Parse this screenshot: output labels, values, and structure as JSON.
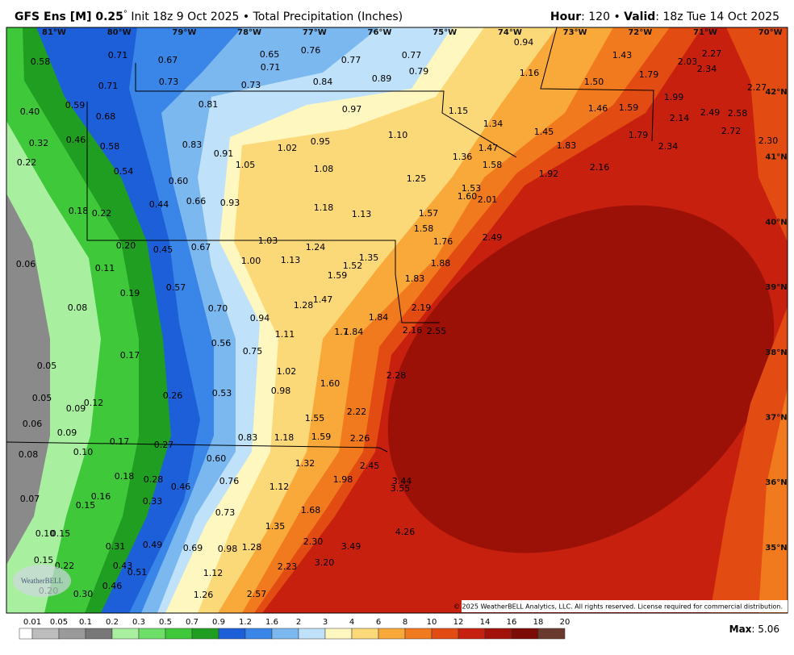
{
  "header": {
    "model": "GFS Ens [M] 0.25",
    "degree": "°",
    "description": " Init 18z 9 Oct 2025 • Total Precipitation (Inches)",
    "hour_key": "Hour",
    "hour_value": ": 120 • ",
    "valid_key": "Valid",
    "valid_value": ": 18z Tue 14 Oct 2025"
  },
  "longitudes": [
    "81°W",
    "80°W",
    "79°W",
    "78°W",
    "77°W",
    "76°W",
    "75°W",
    "74°W",
    "73°W",
    "72°W",
    "71°W",
    "70°W"
  ],
  "latitudes": [
    "42°N",
    "41°N",
    "40°N",
    "39°N",
    "38°N",
    "37°N",
    "36°N",
    "35°N"
  ],
  "point_labels": [
    "0.58",
    "0.71",
    "0.67",
    "0.65",
    "0.76",
    "0.77",
    "0.77",
    "0.94",
    "0.71",
    "0.73",
    "0.73",
    "0.84",
    "0.89",
    "0.79",
    "1.16",
    "1.43",
    "2.03",
    "2.27",
    "2.34",
    "0.71",
    "1.50",
    "1.79",
    "2.27",
    "0.40",
    "0.59",
    "0.81",
    "0.97",
    "1.15",
    "1.46",
    "1.59",
    "1.99",
    "2.49",
    "2.58",
    "2.14",
    "0.68",
    "1.34",
    "1.45",
    "2.72",
    "1.79",
    "0.32",
    "0.46",
    "0.58",
    "0.83",
    "0.91",
    "1.02",
    "0.95",
    "1.10",
    "1.47",
    "1.83",
    "2.34",
    "2.30",
    "0.22",
    "0.54",
    "1.05",
    "1.08",
    "1.36",
    "1.58",
    "2.16",
    "1.92",
    "1.25",
    "0.60",
    "1.53",
    "2.01",
    "1.60",
    "0.44",
    "0.66",
    "0.93",
    "1.18",
    "1.13",
    "1.57",
    "0.18",
    "0.22",
    "1.58",
    "2.49",
    "1.76",
    "0.20",
    "1.03",
    "1.24",
    "0.45",
    "0.67",
    "1.00",
    "1.13",
    "1.88",
    "1.35",
    "0.06",
    "0.11",
    "1.52",
    "1.59",
    "1.83",
    "0.19",
    "0.57",
    "1.47",
    "1.28",
    "2.19",
    "0.08",
    "0.70",
    "0.94",
    "1.84",
    "1.11",
    "1.84",
    "1.7",
    "2.16",
    "2.55",
    "0.56",
    "0.75",
    "0.17",
    "0.05",
    "1.02",
    "2.28",
    "1.60",
    "0.98",
    "0.26",
    "0.53",
    "0.05",
    "0.12",
    "0.09",
    "2.22",
    "1.55",
    "0.06",
    "0.09",
    "0.83",
    "1.18",
    "1.59",
    "2.26",
    "0.17",
    "0.27",
    "0.08",
    "0.10",
    "0.60",
    "1.32",
    "2.45",
    "0.18",
    "0.28",
    "0.76",
    "1.98",
    "3.44",
    "3.55",
    "1.12",
    "0.46",
    "0.07",
    "0.16",
    "0.15",
    "0.33",
    "0.73",
    "1.68",
    "1.35",
    "4.26",
    "0.10",
    "0.15",
    "2.30",
    "3.49",
    "0.31",
    "0.49",
    "0.69",
    "0.98",
    "1.28",
    "0.15",
    "0.22",
    "0.43",
    "0.51",
    "3.20",
    "2.23",
    "1.12",
    "0.46",
    "0.20",
    "0.30",
    "1.26",
    "2.57"
  ],
  "copyright": "© 2025 WeatherBELL Analytics, LLC. All rights reserved. License required for commercial distribution.",
  "logo": "WeatherBELL",
  "colorbar": {
    "labels": [
      "0.01",
      "0.05",
      "0.1",
      "0.2",
      "0.3",
      "0.5",
      "0.7",
      "0.9",
      "1.2",
      "1.6",
      "2",
      "3",
      "4",
      "6",
      "8",
      "10",
      "12",
      "14",
      "16",
      "18",
      "20"
    ],
    "colors": [
      "#ffffff",
      "#bdbdbd",
      "#9a9a9a",
      "#777777",
      "#a8f0a0",
      "#6ee06a",
      "#3ec83a",
      "#1f9e22",
      "#1d5fd8",
      "#3a86e8",
      "#7cb8f0",
      "#bfe2fa",
      "#fff7c0",
      "#fbd878",
      "#f9a83a",
      "#f27a1e",
      "#e24b12",
      "#c82010",
      "#a3120a",
      "#7c0b05",
      "#6a3a2e"
    ]
  },
  "max_key": "Max",
  "max_value": ": 5.06"
}
